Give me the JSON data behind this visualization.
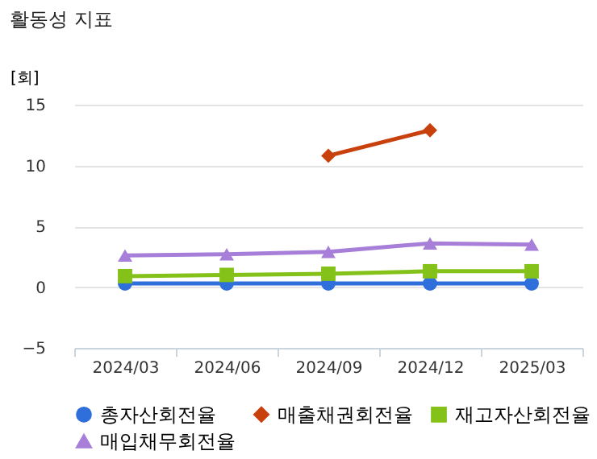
{
  "chart_data": {
    "type": "line",
    "title": "활동성 지표",
    "ylabel": "[회]",
    "categories": [
      "2024/03",
      "2024/06",
      "2024/09",
      "2024/12",
      "2025/03"
    ],
    "series": [
      {
        "name": "총자산회전율",
        "color": "#2f6fdc",
        "marker": "circle",
        "values": [
          0.3,
          0.3,
          0.3,
          0.3,
          0.3
        ]
      },
      {
        "name": "매출채권회전율",
        "color": "#c8400c",
        "marker": "diamond",
        "values": [
          null,
          null,
          10.8,
          12.9,
          null
        ]
      },
      {
        "name": "재고자산회전율",
        "color": "#84c219",
        "marker": "square",
        "values": [
          0.9,
          1.0,
          1.1,
          1.3,
          1.3
        ]
      },
      {
        "name": "매입채무회전율",
        "color": "#a77fd8",
        "marker": "triangle",
        "values": [
          2.6,
          2.7,
          2.9,
          3.6,
          3.5
        ]
      }
    ],
    "ylim": [
      -5,
      15
    ],
    "yticks": [
      -5,
      0,
      5,
      10,
      15
    ],
    "grid": "y",
    "legend": "bottom"
  }
}
